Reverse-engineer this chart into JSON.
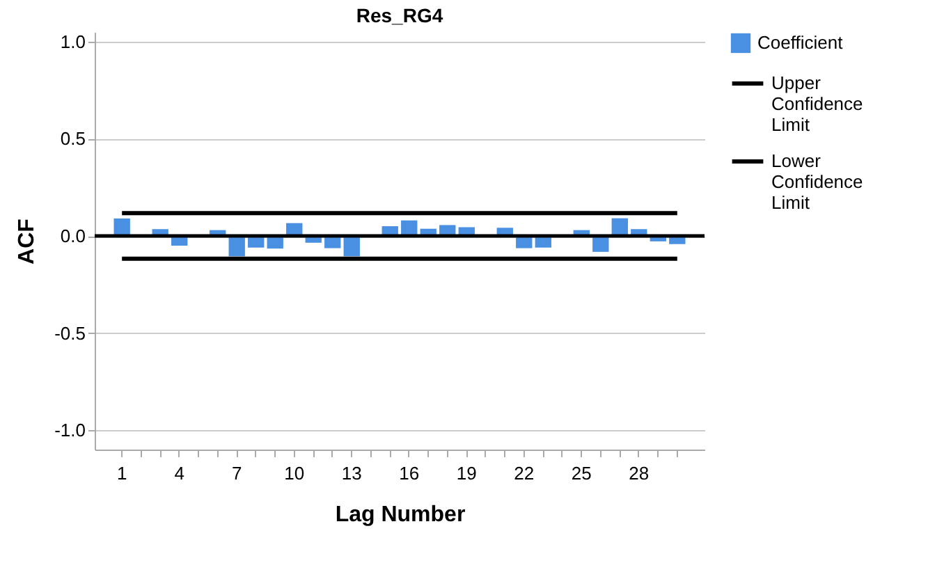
{
  "chart_data": {
    "type": "bar",
    "title": "Res_RG4",
    "xlabel": "Lag Number",
    "ylabel": "ACF",
    "categories": [
      "1",
      null,
      null,
      "4",
      null,
      null,
      "7",
      null,
      null,
      "10",
      null,
      null,
      "13",
      null,
      null,
      "16",
      null,
      null,
      "19",
      null,
      null,
      "22",
      null,
      null,
      "25",
      null,
      null,
      "28",
      null,
      null
    ],
    "series": [
      {
        "name": "Coefficient",
        "color": "#4a90e2",
        "values": [
          0.09,
          0,
          0.035,
          -0.05,
          0,
          0.03,
          -0.105,
          -0.06,
          -0.065,
          0.066,
          -0.035,
          -0.063,
          -0.105,
          0,
          0.05,
          0.08,
          0.037,
          0.056,
          0.045,
          0,
          0.042,
          -0.063,
          -0.06,
          0,
          0.03,
          -0.082,
          0.091,
          0.035,
          -0.028,
          -0.042
        ]
      },
      {
        "name": "Upper Confidence Limit",
        "type": "line",
        "color": "#000000",
        "values": [
          0.117,
          0.117,
          0.117,
          0.117,
          0.117,
          0.117,
          0.117,
          0.117,
          0.117,
          0.117,
          0.117,
          0.117,
          0.117,
          0.117,
          0.117,
          0.117,
          0.117,
          0.117,
          0.117,
          0.117,
          0.117,
          0.117,
          0.117,
          0.117,
          0.117,
          0.117,
          0.117,
          0.117,
          0.117,
          0.117
        ]
      },
      {
        "name": "Lower Confidence Limit",
        "type": "line",
        "color": "#000000",
        "values": [
          -0.117,
          -0.117,
          -0.117,
          -0.117,
          -0.117,
          -0.117,
          -0.117,
          -0.117,
          -0.117,
          -0.117,
          -0.117,
          -0.117,
          -0.117,
          -0.117,
          -0.117,
          -0.117,
          -0.117,
          -0.117,
          -0.117,
          -0.117,
          -0.117,
          -0.117,
          -0.117,
          -0.117,
          -0.117,
          -0.117,
          -0.117,
          -0.117,
          -0.117,
          -0.117
        ]
      }
    ],
    "ylim": [
      -1.1,
      1.05
    ],
    "yticks": [
      {
        "value": -1.0,
        "label": "-1.0"
      },
      {
        "value": -0.5,
        "label": "-0.5"
      },
      {
        "value": 0,
        "label": "0.0"
      },
      {
        "value": 0.5,
        "label": "0.5"
      },
      {
        "value": 1.0,
        "label": "1.0"
      }
    ],
    "grid": "y",
    "ref_lines": [
      {
        "axis": "y",
        "value": 0,
        "color": "#000000"
      }
    ],
    "legend": "top right"
  }
}
